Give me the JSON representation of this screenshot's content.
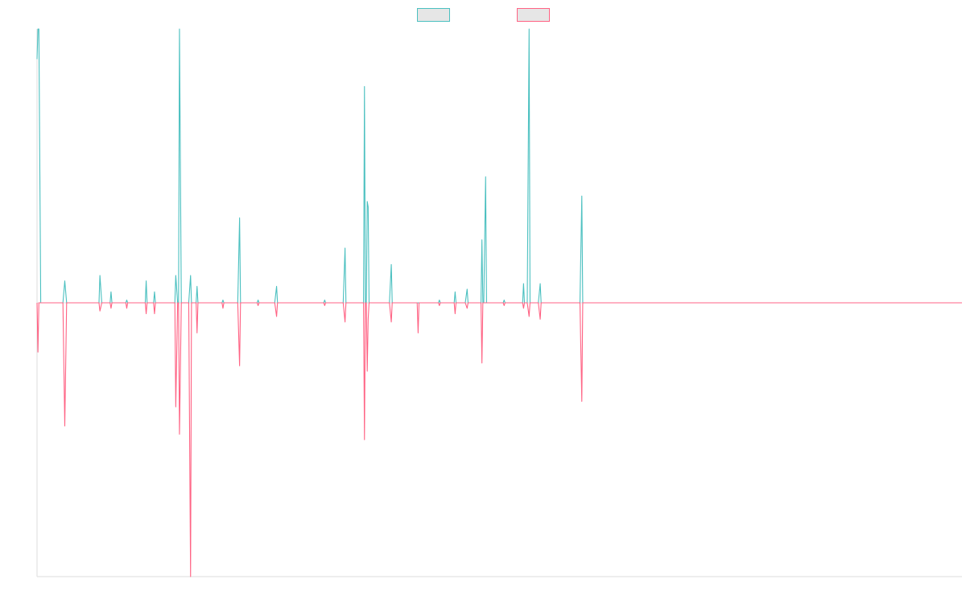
{
  "chart_data": {
    "type": "line",
    "title": "",
    "xlabel": "",
    "ylabel": "",
    "x_range": [
      0,
      1000
    ],
    "ylim": [
      -10,
      10
    ],
    "grid": false,
    "legend": {
      "placement": "top-center"
    },
    "colors": {
      "series_a": "#4bc0c0",
      "series_b": "#ff6384",
      "legend_fill": "#e6e6e6",
      "axis": "#dddddd"
    },
    "series": [
      {
        "key": "series_a",
        "points": [
          [
            0,
            8.9
          ],
          [
            1,
            11.0
          ],
          [
            2,
            11.0
          ],
          [
            4,
            0.0
          ],
          [
            28,
            0.0
          ],
          [
            30,
            0.8
          ],
          [
            32,
            0.0
          ],
          [
            67,
            0.0
          ],
          [
            68,
            1.0
          ],
          [
            70,
            0.0
          ],
          [
            79,
            0.0
          ],
          [
            80,
            0.4
          ],
          [
            81,
            0.0
          ],
          [
            96,
            0.0
          ],
          [
            97,
            0.1
          ],
          [
            98,
            0.0
          ],
          [
            117,
            0.0
          ],
          [
            118,
            0.8
          ],
          [
            119,
            0.0
          ],
          [
            126,
            0.0
          ],
          [
            127,
            0.4
          ],
          [
            128,
            0.0
          ],
          [
            149,
            0.0
          ],
          [
            150,
            1.0
          ],
          [
            152,
            0.0
          ],
          [
            153,
            0.0
          ],
          [
            154,
            15.6
          ],
          [
            156,
            0.0
          ],
          [
            164,
            0.0
          ],
          [
            166,
            1.0
          ],
          [
            167,
            0.0
          ],
          [
            172,
            0.0
          ],
          [
            173,
            0.6
          ],
          [
            174,
            0.0
          ],
          [
            200,
            0.0
          ],
          [
            201,
            0.1
          ],
          [
            202,
            0.0
          ],
          [
            217,
            0.0
          ],
          [
            219,
            3.1
          ],
          [
            220,
            0.0
          ],
          [
            238,
            0.0
          ],
          [
            239,
            0.1
          ],
          [
            240,
            0.0
          ],
          [
            257,
            0.0
          ],
          [
            259,
            0.6
          ],
          [
            260,
            0.0
          ],
          [
            310,
            0.0
          ],
          [
            311,
            0.1
          ],
          [
            312,
            0.0
          ],
          [
            331,
            0.0
          ],
          [
            333,
            2.0
          ],
          [
            334,
            0.0
          ],
          [
            353,
            0.0
          ],
          [
            354,
            7.9
          ],
          [
            355,
            0.0
          ],
          [
            356,
            0.0
          ],
          [
            357,
            3.7
          ],
          [
            358,
            3.5
          ],
          [
            359,
            0.0
          ],
          [
            381,
            0.0
          ],
          [
            383,
            1.4
          ],
          [
            384,
            0.0
          ],
          [
            411,
            0.0
          ],
          [
            412,
            0.0
          ],
          [
            434,
            0.0
          ],
          [
            435,
            0.1
          ],
          [
            436,
            0.0
          ],
          [
            451,
            0.0
          ],
          [
            452,
            0.4
          ],
          [
            453,
            0.0
          ],
          [
            463,
            0.0
          ],
          [
            465,
            0.5
          ],
          [
            466,
            0.0
          ],
          [
            480,
            0.0
          ],
          [
            481,
            2.3
          ],
          [
            482,
            0.0
          ],
          [
            483,
            0.0
          ],
          [
            485,
            4.6
          ],
          [
            486,
            0.0
          ],
          [
            504,
            0.0
          ],
          [
            505,
            0.1
          ],
          [
            506,
            0.0
          ],
          [
            525,
            0.0
          ],
          [
            526,
            0.7
          ],
          [
            527,
            0.0
          ],
          [
            530,
            0.0
          ],
          [
            532,
            11.2
          ],
          [
            533,
            0.0
          ],
          [
            542,
            0.0
          ],
          [
            544,
            0.7
          ],
          [
            545,
            0.0
          ],
          [
            587,
            0.0
          ],
          [
            589,
            3.9
          ],
          [
            590,
            0.0
          ],
          [
            1000,
            0.0
          ]
        ]
      },
      {
        "key": "series_b",
        "points": [
          [
            0,
            0.0
          ],
          [
            1,
            -1.8
          ],
          [
            2,
            0.0
          ],
          [
            28,
            0.0
          ],
          [
            30,
            -4.5
          ],
          [
            32,
            0.0
          ],
          [
            67,
            0.0
          ],
          [
            68,
            -0.3
          ],
          [
            70,
            0.0
          ],
          [
            79,
            0.0
          ],
          [
            80,
            -0.2
          ],
          [
            81,
            0.0
          ],
          [
            96,
            0.0
          ],
          [
            97,
            -0.2
          ],
          [
            98,
            0.0
          ],
          [
            117,
            0.0
          ],
          [
            118,
            -0.4
          ],
          [
            119,
            0.0
          ],
          [
            126,
            0.0
          ],
          [
            127,
            -0.4
          ],
          [
            128,
            0.0
          ],
          [
            149,
            0.0
          ],
          [
            150,
            -3.8
          ],
          [
            152,
            0.0
          ],
          [
            153,
            0.0
          ],
          [
            154,
            -4.8
          ],
          [
            156,
            0.0
          ],
          [
            164,
            0.0
          ],
          [
            166,
            -10.0
          ],
          [
            167,
            0.0
          ],
          [
            172,
            0.0
          ],
          [
            173,
            -1.1
          ],
          [
            174,
            0.0
          ],
          [
            200,
            0.0
          ],
          [
            201,
            -0.2
          ],
          [
            202,
            0.0
          ],
          [
            217,
            0.0
          ],
          [
            219,
            -2.3
          ],
          [
            220,
            0.0
          ],
          [
            238,
            0.0
          ],
          [
            239,
            -0.1
          ],
          [
            240,
            0.0
          ],
          [
            257,
            0.0
          ],
          [
            259,
            -0.5
          ],
          [
            260,
            0.0
          ],
          [
            310,
            0.0
          ],
          [
            311,
            -0.1
          ],
          [
            312,
            0.0
          ],
          [
            331,
            0.0
          ],
          [
            333,
            -0.7
          ],
          [
            334,
            0.0
          ],
          [
            353,
            0.0
          ],
          [
            354,
            -5.0
          ],
          [
            355,
            0.0
          ],
          [
            356,
            0.0
          ],
          [
            357,
            -2.5
          ],
          [
            358,
            -0.6
          ],
          [
            359,
            0.0
          ],
          [
            381,
            0.0
          ],
          [
            383,
            -0.7
          ],
          [
            384,
            0.0
          ],
          [
            411,
            0.0
          ],
          [
            412,
            -1.1
          ],
          [
            413,
            0.0
          ],
          [
            434,
            0.0
          ],
          [
            435,
            -0.1
          ],
          [
            436,
            0.0
          ],
          [
            451,
            0.0
          ],
          [
            452,
            -0.4
          ],
          [
            453,
            0.0
          ],
          [
            463,
            0.0
          ],
          [
            465,
            -0.2
          ],
          [
            466,
            0.0
          ],
          [
            480,
            0.0
          ],
          [
            481,
            -2.2
          ],
          [
            482,
            0.0
          ],
          [
            504,
            0.0
          ],
          [
            505,
            -0.1
          ],
          [
            506,
            0.0
          ],
          [
            525,
            0.0
          ],
          [
            526,
            -0.2
          ],
          [
            527,
            0.0
          ],
          [
            530,
            0.0
          ],
          [
            532,
            -0.5
          ],
          [
            533,
            0.0
          ],
          [
            542,
            0.0
          ],
          [
            544,
            -0.6
          ],
          [
            545,
            0.0
          ],
          [
            587,
            0.0
          ],
          [
            589,
            -3.6
          ],
          [
            590,
            0.0
          ],
          [
            1000,
            0.0
          ]
        ]
      }
    ]
  }
}
